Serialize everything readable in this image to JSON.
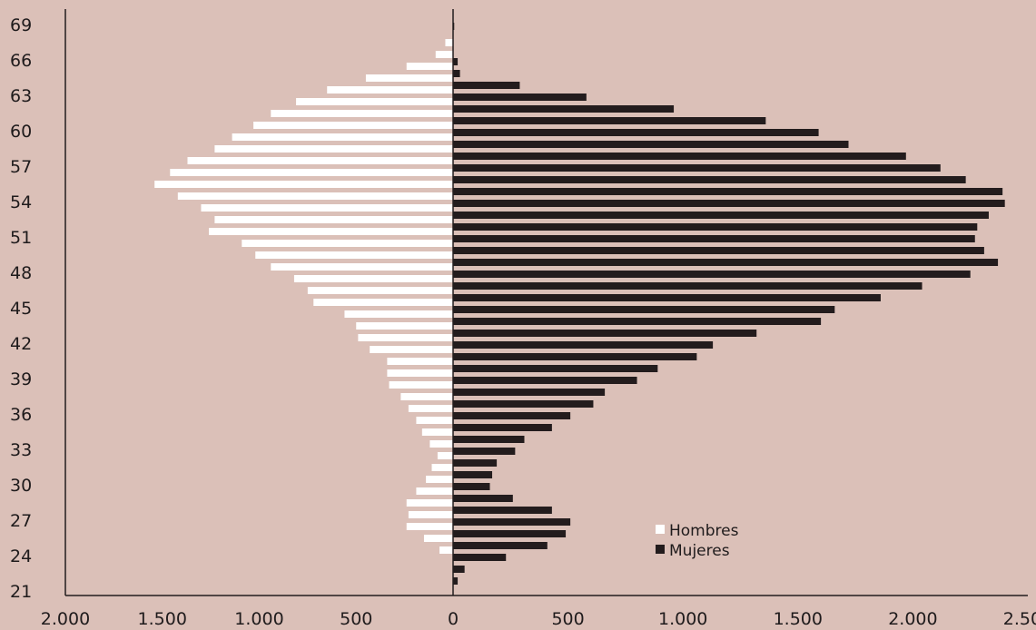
{
  "chart_data": {
    "type": "bar",
    "orientation": "horizontal",
    "subtype": "population-pyramid",
    "x_tick_labels": [
      "2.000",
      "1.500",
      "1.000",
      "500",
      "0",
      "500",
      "1.000",
      "1.500",
      "2.000",
      "2.500"
    ],
    "x_tick_values": [
      -2000,
      -1500,
      -1000,
      -500,
      0,
      500,
      1000,
      1500,
      2000,
      2500
    ],
    "xlim": [
      -2000,
      2500
    ],
    "ylim": [
      21,
      69
    ],
    "y_tick_labels": [
      "69",
      "66",
      "63",
      "60",
      "57",
      "54",
      "51",
      "48",
      "45",
      "42",
      "39",
      "36",
      "33",
      "30",
      "27",
      "24",
      "21"
    ],
    "y_tick_values": [
      69,
      66,
      63,
      60,
      57,
      54,
      51,
      48,
      45,
      42,
      39,
      36,
      33,
      30,
      27,
      24,
      21
    ],
    "ages": [
      21,
      22,
      23,
      24,
      25,
      26,
      27,
      28,
      29,
      30,
      31,
      32,
      33,
      34,
      35,
      36,
      37,
      38,
      39,
      40,
      41,
      42,
      43,
      44,
      45,
      46,
      47,
      48,
      49,
      50,
      51,
      52,
      53,
      54,
      55,
      56,
      57,
      58,
      59,
      60,
      61,
      62,
      63,
      64,
      65,
      66,
      67,
      68,
      69
    ],
    "legend_position": "bottom-right",
    "grid": false,
    "colors": {
      "background": "#dbc0b8",
      "hombres": "#ffffff",
      "mujeres": "#231c1d",
      "axis": "#231c1d"
    },
    "series": [
      {
        "name": "Hombres",
        "color": "#ffffff",
        "values": [
          0,
          0,
          0,
          70,
          150,
          240,
          230,
          240,
          190,
          140,
          110,
          80,
          120,
          160,
          190,
          230,
          270,
          330,
          340,
          340,
          430,
          490,
          500,
          560,
          720,
          750,
          820,
          940,
          1020,
          1090,
          1260,
          1230,
          1300,
          1420,
          1540,
          1460,
          1370,
          1230,
          1140,
          1030,
          940,
          810,
          650,
          450,
          240,
          90,
          40,
          0,
          0
        ]
      },
      {
        "name": "Mujeres",
        "color": "#231c1d",
        "values": [
          0,
          20,
          50,
          230,
          410,
          490,
          510,
          430,
          260,
          160,
          170,
          190,
          270,
          310,
          430,
          510,
          610,
          660,
          800,
          890,
          1060,
          1130,
          1320,
          1600,
          1660,
          1860,
          2040,
          2250,
          2370,
          2310,
          2270,
          2280,
          2330,
          2400,
          2390,
          2230,
          2120,
          1970,
          1720,
          1590,
          1360,
          960,
          580,
          290,
          30,
          20,
          0,
          0,
          5
        ]
      }
    ]
  }
}
